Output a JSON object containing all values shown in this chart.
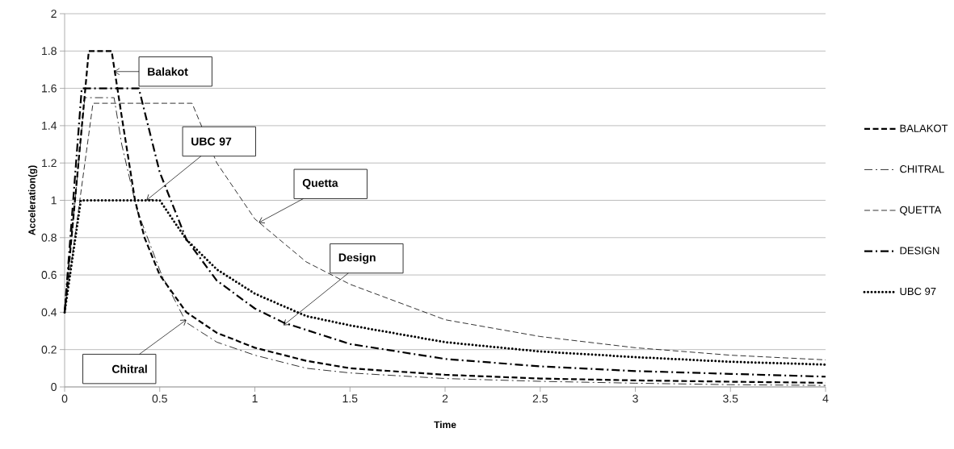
{
  "chart_data": {
    "type": "line",
    "xlabel": "Time",
    "ylabel": "Acceleration(g)",
    "xlim": [
      0,
      4
    ],
    "ylim": [
      0,
      2
    ],
    "xticks": [
      0,
      0.5,
      1,
      1.5,
      2,
      2.5,
      3,
      3.5,
      4
    ],
    "yticks": [
      0,
      0.2,
      0.4,
      0.6,
      0.8,
      1,
      1.2,
      1.4,
      1.6,
      1.8,
      2
    ],
    "grid": "y",
    "legend": "right",
    "series": [
      {
        "name": "BALAKOT",
        "color": "#000000",
        "line_style": "dashed",
        "x": [
          0,
          0.127,
          0.247,
          0.3,
          0.37,
          0.42,
          0.5,
          0.64,
          0.8,
          1,
          1.27,
          1.5,
          2,
          2.5,
          3,
          3.5,
          4
        ],
        "values": [
          0.4,
          1.8,
          1.8,
          1.45,
          1.0,
          0.8,
          0.6,
          0.4,
          0.29,
          0.21,
          0.14,
          0.1,
          0.065,
          0.045,
          0.035,
          0.028,
          0.022
        ]
      },
      {
        "name": "CHITRAL",
        "color": "#000000",
        "line_style": "dashdot",
        "x": [
          0,
          0.106,
          0.26,
          0.3,
          0.38,
          0.51,
          0.64,
          0.8,
          1,
          1.27,
          1.5,
          2,
          2.5,
          3,
          3.5,
          4
        ],
        "values": [
          0.4,
          1.55,
          1.55,
          1.3,
          0.95,
          0.6,
          0.345,
          0.24,
          0.17,
          0.1,
          0.075,
          0.045,
          0.03,
          0.02,
          0.012,
          0.008
        ]
      },
      {
        "name": "QUETTA",
        "color": "#000000",
        "line_style": "dashed",
        "x": [
          0,
          0.149,
          0.67,
          0.8,
          1,
          1.27,
          1.5,
          2,
          2.5,
          3,
          3.5,
          4
        ],
        "values": [
          0.4,
          1.52,
          1.52,
          1.2,
          0.9,
          0.67,
          0.55,
          0.36,
          0.27,
          0.21,
          0.17,
          0.145
        ]
      },
      {
        "name": "DESIGN",
        "color": "#000000",
        "line_style": "dashdot",
        "x": [
          0,
          0.09,
          0.39,
          0.5,
          0.64,
          0.8,
          1,
          1.15,
          1.5,
          2,
          2.5,
          3,
          3.5,
          4
        ],
        "values": [
          0.4,
          1.6,
          1.6,
          1.15,
          0.79,
          0.57,
          0.42,
          0.345,
          0.23,
          0.15,
          0.11,
          0.085,
          0.07,
          0.055
        ]
      },
      {
        "name": "UBC 97",
        "color": "#000000",
        "line_style": "dotted",
        "x": [
          0,
          0.085,
          0.5,
          0.64,
          0.8,
          1,
          1.27,
          1.5,
          2,
          2.5,
          3,
          3.5,
          4
        ],
        "values": [
          0.4,
          1.0,
          1.0,
          0.79,
          0.63,
          0.5,
          0.38,
          0.33,
          0.24,
          0.19,
          0.16,
          0.135,
          0.12
        ]
      }
    ],
    "annotations": [
      {
        "text": "Balakot",
        "x": 0.26,
        "y": 1.69
      },
      {
        "text": "UBC 97",
        "x": 0.43,
        "y": 1.0
      },
      {
        "text": "Quetta",
        "x": 1.02,
        "y": 0.88
      },
      {
        "text": "Design",
        "x": 1.15,
        "y": 0.33
      },
      {
        "text": "Chitral",
        "x": 0.64,
        "y": 0.36
      }
    ]
  }
}
